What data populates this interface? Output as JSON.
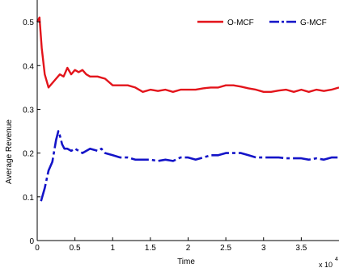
{
  "chart_data": {
    "type": "line",
    "xlabel": "Time",
    "ylabel": "Average Revenue",
    "x_exponent_label": "x 10",
    "x_exponent_power": "4",
    "xlim": [
      0,
      4
    ],
    "ylim": [
      0,
      0.55
    ],
    "x_ticks": [
      0,
      0.5,
      1,
      1.5,
      2,
      2.5,
      3,
      3.5
    ],
    "x_tick_labels": [
      "0",
      "0.5",
      "1",
      "1.5",
      "2",
      "2.5",
      "3",
      "3.5"
    ],
    "y_ticks": [
      0,
      0.1,
      0.2,
      0.3,
      0.4,
      0.5
    ],
    "y_tick_labels": [
      "0",
      "0.1",
      "0.2",
      "0.3",
      "0.4",
      "0.5"
    ],
    "grid": false,
    "legend_position": "top-right",
    "series": [
      {
        "name": "O-MCF",
        "color": "#e3141b",
        "style": "solid",
        "x": [
          0.0,
          0.03,
          0.06,
          0.1,
          0.15,
          0.2,
          0.25,
          0.3,
          0.35,
          0.4,
          0.45,
          0.5,
          0.55,
          0.6,
          0.65,
          0.7,
          0.8,
          0.9,
          1.0,
          1.1,
          1.2,
          1.3,
          1.4,
          1.5,
          1.6,
          1.7,
          1.8,
          1.9,
          2.0,
          2.1,
          2.2,
          2.3,
          2.4,
          2.5,
          2.6,
          2.7,
          2.8,
          2.9,
          3.0,
          3.1,
          3.2,
          3.3,
          3.4,
          3.5,
          3.6,
          3.7,
          3.8,
          3.9,
          4.0
        ],
        "values": [
          0.5,
          0.51,
          0.44,
          0.38,
          0.35,
          0.36,
          0.37,
          0.38,
          0.375,
          0.395,
          0.38,
          0.39,
          0.385,
          0.39,
          0.38,
          0.375,
          0.375,
          0.37,
          0.355,
          0.355,
          0.355,
          0.35,
          0.34,
          0.345,
          0.342,
          0.345,
          0.34,
          0.345,
          0.345,
          0.345,
          0.348,
          0.35,
          0.35,
          0.355,
          0.355,
          0.352,
          0.348,
          0.345,
          0.34,
          0.34,
          0.343,
          0.345,
          0.34,
          0.345,
          0.34,
          0.345,
          0.342,
          0.345,
          0.35
        ]
      },
      {
        "name": "G-MCF",
        "color": "#1414c8",
        "style": "dash-dot",
        "x": [
          0.05,
          0.1,
          0.15,
          0.2,
          0.25,
          0.28,
          0.3,
          0.33,
          0.36,
          0.4,
          0.45,
          0.5,
          0.6,
          0.7,
          0.8,
          0.85,
          0.9,
          1.0,
          1.1,
          1.2,
          1.3,
          1.4,
          1.5,
          1.6,
          1.7,
          1.8,
          1.9,
          2.0,
          2.1,
          2.2,
          2.3,
          2.4,
          2.5,
          2.6,
          2.7,
          2.8,
          2.9,
          3.0,
          3.1,
          3.2,
          3.3,
          3.4,
          3.5,
          3.6,
          3.7,
          3.8,
          3.9,
          4.0
        ],
        "values": [
          0.09,
          0.12,
          0.16,
          0.18,
          0.23,
          0.25,
          0.24,
          0.22,
          0.21,
          0.21,
          0.205,
          0.21,
          0.2,
          0.21,
          0.205,
          0.21,
          0.2,
          0.195,
          0.19,
          0.19,
          0.185,
          0.185,
          0.185,
          0.182,
          0.185,
          0.182,
          0.19,
          0.19,
          0.185,
          0.19,
          0.195,
          0.195,
          0.2,
          0.2,
          0.2,
          0.195,
          0.19,
          0.19,
          0.19,
          0.19,
          0.188,
          0.188,
          0.188,
          0.185,
          0.188,
          0.185,
          0.19,
          0.19
        ]
      }
    ]
  }
}
